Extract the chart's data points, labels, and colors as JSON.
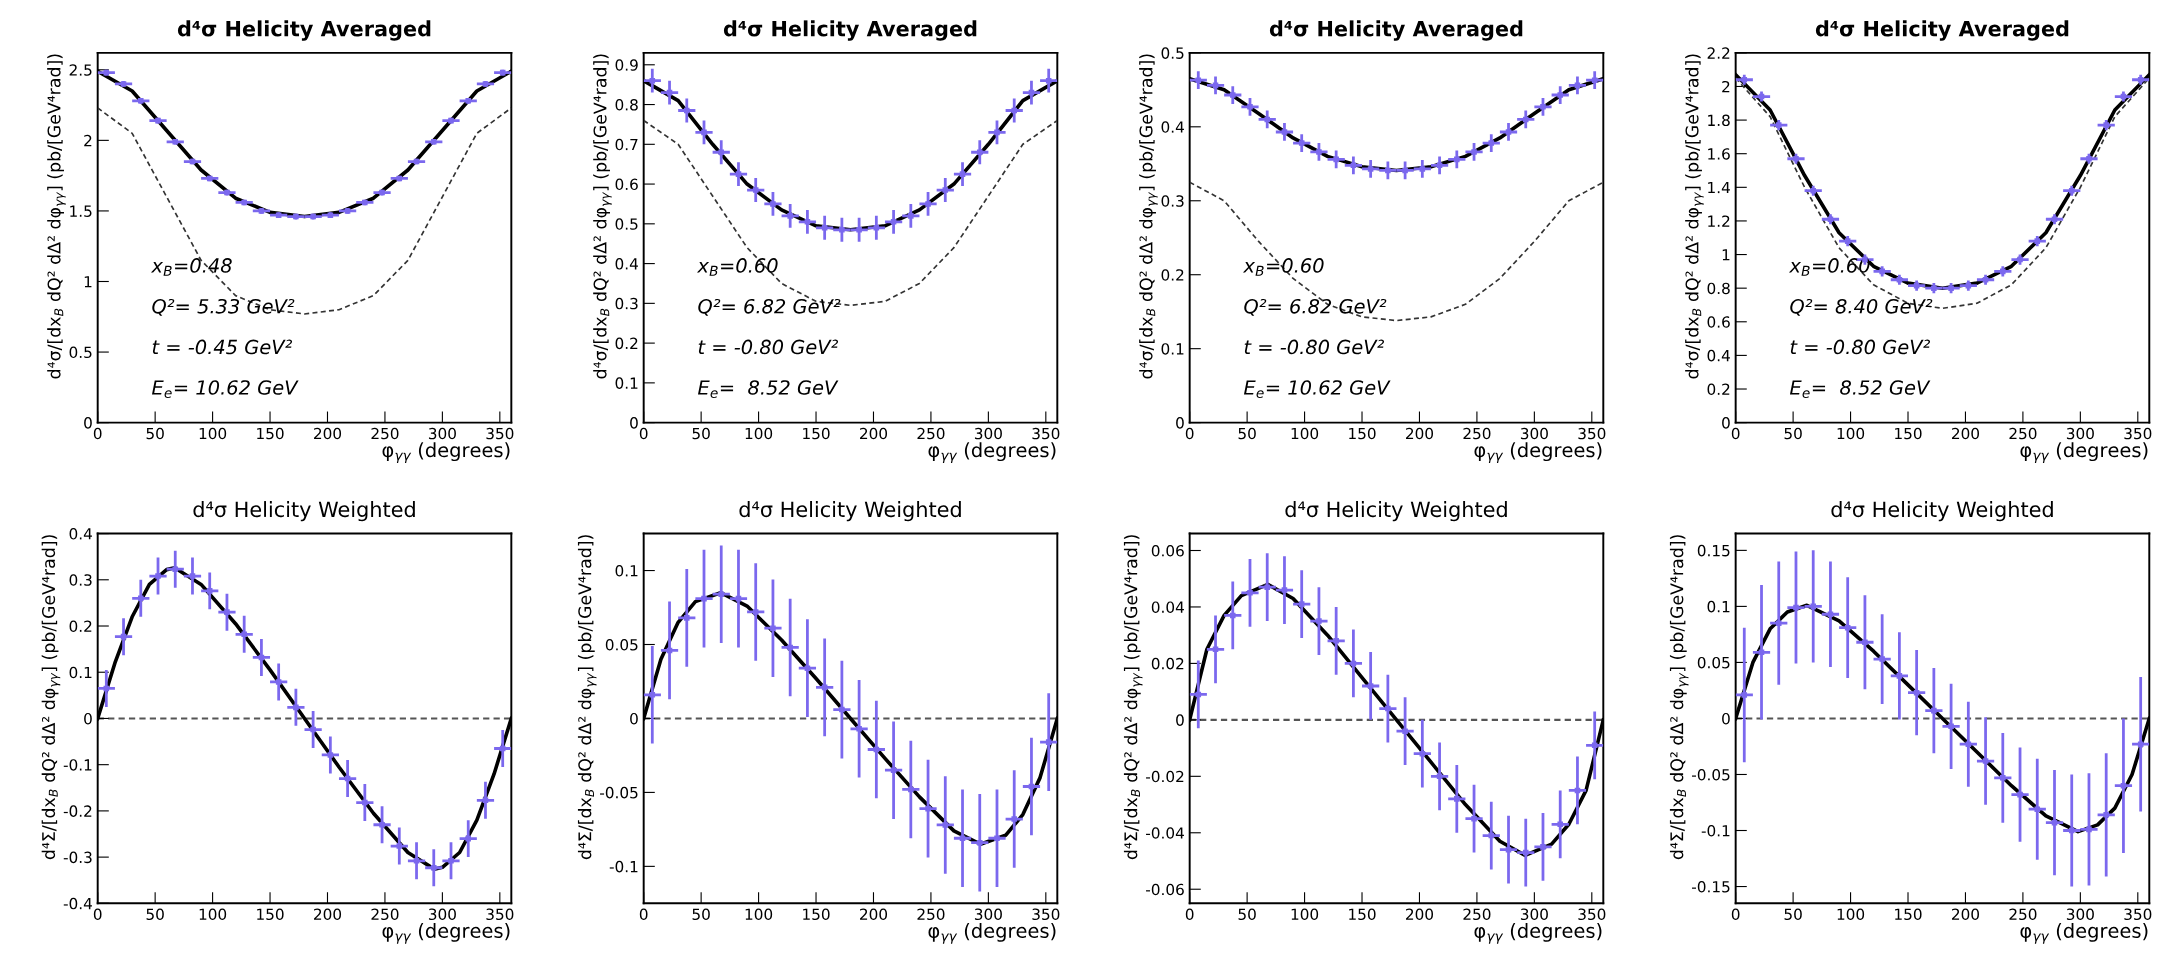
{
  "chart_data": [
    {
      "type": "scatter",
      "title": "d⁴σ Helicity Averaged",
      "xlabel": "φ$_{γγ}$ (degrees)",
      "ylabel": "d⁴σ/[dx$_{B}$ dQ² dΔ² dφ$_{γγ}$] (pb/[GeV⁴rad])",
      "xlim": [
        0,
        360
      ],
      "ylim": [
        0,
        2.62
      ],
      "xticks": [
        0,
        50,
        100,
        150,
        200,
        250,
        300,
        350
      ],
      "yticks": [
        0,
        0.5,
        1,
        1.5,
        2,
        2.5
      ],
      "grid": false,
      "legend": false,
      "marker": "none",
      "x": [
        7.5,
        22.5,
        37.5,
        52.5,
        67.5,
        82.5,
        97.5,
        112.5,
        127.5,
        142.5,
        157.5,
        172.5,
        187.5,
        202.5,
        217.5,
        232.5,
        247.5,
        262.5,
        277.5,
        292.5,
        307.5,
        322.5,
        337.5,
        352.5
      ],
      "annotations": [
        "x$_{B}$=0.48",
        "Q²= 5.33 GeV²",
        "t = -0.45 GeV²",
        "E$_{e}$= 10.62 GeV"
      ],
      "series": [
        {
          "type": "scatter",
          "marker": "square",
          "color": "#7b68ee",
          "values": [
            2.48,
            2.4,
            2.28,
            2.14,
            1.99,
            1.85,
            1.73,
            1.63,
            1.56,
            1.5,
            1.47,
            1.46,
            1.46,
            1.47,
            1.5,
            1.56,
            1.63,
            1.73,
            1.85,
            1.99,
            2.14,
            2.28,
            2.4,
            2.48
          ],
          "errors": [
            0.02,
            0.02,
            0.02,
            0.02,
            0.02,
            0.02,
            0.02,
            0.02,
            0.02,
            0.02,
            0.02,
            0.02,
            0.02,
            0.02,
            0.02,
            0.02,
            0.02,
            0.02,
            0.02,
            0.02,
            0.02,
            0.02,
            0.02,
            0.02
          ],
          "xerrors": [
            7.5,
            7.5,
            7.5,
            7.5,
            7.5,
            7.5,
            7.5,
            7.5,
            7.5,
            7.5,
            7.5,
            7.5,
            7.5,
            7.5,
            7.5,
            7.5,
            7.5,
            7.5,
            7.5,
            7.5,
            7.5,
            7.5,
            7.5,
            7.5
          ]
        },
        {
          "type": "line",
          "color": "#000000",
          "line_style": "solid",
          "x": [
            0,
            30,
            60,
            90,
            120,
            150,
            180,
            210,
            240,
            270,
            300,
            330,
            360
          ],
          "values": [
            2.49,
            2.35,
            2.07,
            1.79,
            1.59,
            1.49,
            1.46,
            1.49,
            1.59,
            1.79,
            2.07,
            2.35,
            2.49
          ]
        },
        {
          "type": "line",
          "color": "#333333",
          "line_style": "dashed",
          "x": [
            0,
            30,
            60,
            90,
            120,
            150,
            180,
            210,
            240,
            270,
            300,
            330,
            360
          ],
          "values": [
            2.23,
            2.05,
            1.6,
            1.15,
            0.9,
            0.8,
            0.77,
            0.8,
            0.9,
            1.15,
            1.6,
            2.05,
            2.23
          ]
        }
      ]
    },
    {
      "type": "scatter",
      "title": "d⁴σ Helicity Averaged",
      "xlabel": "φ$_{γγ}$ (degrees)",
      "ylabel": "d⁴σ/[dx$_{B}$ dQ² dΔ² dφ$_{γγ}$] (pb/[GeV⁴rad])",
      "xlim": [
        0,
        360
      ],
      "ylim": [
        0,
        0.93
      ],
      "xticks": [
        0,
        50,
        100,
        150,
        200,
        250,
        300,
        350
      ],
      "yticks": [
        0,
        0.1,
        0.2,
        0.3,
        0.4,
        0.5,
        0.6,
        0.7,
        0.8,
        0.9
      ],
      "grid": false,
      "legend": false,
      "marker": "none",
      "x": [
        7.5,
        22.5,
        37.5,
        52.5,
        67.5,
        82.5,
        97.5,
        112.5,
        127.5,
        142.5,
        157.5,
        172.5,
        187.5,
        202.5,
        217.5,
        232.5,
        247.5,
        262.5,
        277.5,
        292.5,
        307.5,
        322.5,
        337.5,
        352.5
      ],
      "annotations": [
        "x$_{B}$=0.60",
        "Q²= 6.82 GeV²",
        "t = -0.80 GeV²",
        "E$_{e}$=  8.52 GeV"
      ],
      "series": [
        {
          "type": "scatter",
          "marker": "square",
          "color": "#7b68ee",
          "values": [
            0.86,
            0.83,
            0.785,
            0.73,
            0.68,
            0.625,
            0.585,
            0.55,
            0.52,
            0.505,
            0.49,
            0.485,
            0.485,
            0.49,
            0.505,
            0.52,
            0.55,
            0.585,
            0.625,
            0.68,
            0.73,
            0.785,
            0.83,
            0.86
          ],
          "errors": [
            0.03,
            0.03,
            0.03,
            0.03,
            0.03,
            0.03,
            0.03,
            0.03,
            0.03,
            0.03,
            0.03,
            0.03,
            0.03,
            0.03,
            0.03,
            0.03,
            0.03,
            0.03,
            0.03,
            0.03,
            0.03,
            0.03,
            0.03,
            0.03
          ],
          "xerrors": [
            7.5,
            7.5,
            7.5,
            7.5,
            7.5,
            7.5,
            7.5,
            7.5,
            7.5,
            7.5,
            7.5,
            7.5,
            7.5,
            7.5,
            7.5,
            7.5,
            7.5,
            7.5,
            7.5,
            7.5,
            7.5,
            7.5,
            7.5,
            7.5
          ]
        },
        {
          "type": "line",
          "color": "#000000",
          "line_style": "solid",
          "x": [
            0,
            30,
            60,
            90,
            120,
            150,
            180,
            210,
            240,
            270,
            300,
            330,
            360
          ],
          "values": [
            0.86,
            0.81,
            0.7,
            0.6,
            0.535,
            0.495,
            0.485,
            0.495,
            0.535,
            0.6,
            0.7,
            0.81,
            0.86
          ]
        },
        {
          "type": "line",
          "color": "#333333",
          "line_style": "dashed",
          "x": [
            0,
            30,
            60,
            90,
            120,
            150,
            180,
            210,
            240,
            270,
            300,
            330,
            360
          ],
          "values": [
            0.76,
            0.7,
            0.57,
            0.44,
            0.35,
            0.305,
            0.295,
            0.305,
            0.35,
            0.44,
            0.57,
            0.7,
            0.76
          ]
        }
      ]
    },
    {
      "type": "scatter",
      "title": "d⁴σ Helicity Averaged",
      "xlabel": "φ$_{γγ}$ (degrees)",
      "ylabel": "d⁴σ/[dx$_{B}$ dQ² dΔ² dφ$_{γγ}$] (pb/[GeV⁴rad])",
      "xlim": [
        0,
        360
      ],
      "ylim": [
        0,
        0.5
      ],
      "xticks": [
        0,
        50,
        100,
        150,
        200,
        250,
        300,
        350
      ],
      "yticks": [
        0,
        0.1,
        0.2,
        0.3,
        0.4,
        0.5
      ],
      "grid": false,
      "legend": false,
      "marker": "none",
      "x": [
        7.5,
        22.5,
        37.5,
        52.5,
        67.5,
        82.5,
        97.5,
        112.5,
        127.5,
        142.5,
        157.5,
        172.5,
        187.5,
        202.5,
        217.5,
        232.5,
        247.5,
        262.5,
        277.5,
        292.5,
        307.5,
        322.5,
        337.5,
        352.5
      ],
      "annotations": [
        "x$_{B}$=0.60",
        "Q²= 6.82 GeV²",
        "t = -0.80 GeV²",
        "E$_{e}$= 10.62 GeV"
      ],
      "series": [
        {
          "type": "scatter",
          "marker": "square",
          "color": "#7b68ee",
          "values": [
            0.463,
            0.456,
            0.443,
            0.427,
            0.41,
            0.393,
            0.378,
            0.366,
            0.356,
            0.348,
            0.343,
            0.341,
            0.341,
            0.343,
            0.348,
            0.356,
            0.366,
            0.378,
            0.393,
            0.41,
            0.427,
            0.443,
            0.456,
            0.463
          ],
          "errors": [
            0.012,
            0.012,
            0.012,
            0.012,
            0.012,
            0.012,
            0.012,
            0.012,
            0.012,
            0.012,
            0.012,
            0.012,
            0.012,
            0.012,
            0.012,
            0.012,
            0.012,
            0.012,
            0.012,
            0.012,
            0.012,
            0.012,
            0.012,
            0.012
          ],
          "xerrors": [
            7.5,
            7.5,
            7.5,
            7.5,
            7.5,
            7.5,
            7.5,
            7.5,
            7.5,
            7.5,
            7.5,
            7.5,
            7.5,
            7.5,
            7.5,
            7.5,
            7.5,
            7.5,
            7.5,
            7.5,
            7.5,
            7.5,
            7.5,
            7.5
          ]
        },
        {
          "type": "line",
          "color": "#000000",
          "line_style": "solid",
          "x": [
            0,
            30,
            60,
            90,
            120,
            150,
            180,
            210,
            240,
            270,
            300,
            330,
            360
          ],
          "values": [
            0.465,
            0.45,
            0.418,
            0.385,
            0.36,
            0.346,
            0.341,
            0.346,
            0.36,
            0.385,
            0.418,
            0.45,
            0.465
          ]
        },
        {
          "type": "line",
          "color": "#333333",
          "line_style": "dashed",
          "x": [
            0,
            30,
            60,
            90,
            120,
            150,
            180,
            210,
            240,
            270,
            300,
            330,
            360
          ],
          "values": [
            0.325,
            0.3,
            0.245,
            0.195,
            0.16,
            0.143,
            0.138,
            0.143,
            0.16,
            0.195,
            0.245,
            0.3,
            0.325
          ]
        }
      ]
    },
    {
      "type": "scatter",
      "title": "d⁴σ Helicity Averaged",
      "xlabel": "φ$_{γγ}$ (degrees)",
      "ylabel": "d⁴σ/[dx$_{B}$ dQ² dΔ² dφ$_{γγ}$] (pb/[GeV⁴rad])",
      "xlim": [
        0,
        360
      ],
      "ylim": [
        0,
        2.2
      ],
      "xticks": [
        0,
        50,
        100,
        150,
        200,
        250,
        300,
        350
      ],
      "yticks": [
        0,
        0.2,
        0.4,
        0.6,
        0.8,
        1,
        1.2,
        1.4,
        1.6,
        1.8,
        2,
        2.2
      ],
      "grid": false,
      "legend": false,
      "marker": "none",
      "x": [
        7.5,
        22.5,
        37.5,
        52.5,
        67.5,
        82.5,
        97.5,
        112.5,
        127.5,
        142.5,
        157.5,
        172.5,
        187.5,
        202.5,
        217.5,
        232.5,
        247.5,
        262.5,
        277.5,
        292.5,
        307.5,
        322.5,
        337.5,
        352.5
      ],
      "annotations": [
        "x$_{B}$=0.60",
        "Q²= 8.40 GeV²",
        "t = -0.80 GeV²",
        "E$_{e}$=  8.52 GeV"
      ],
      "series": [
        {
          "type": "scatter",
          "marker": "square",
          "color": "#7b68ee",
          "values": [
            2.04,
            1.94,
            1.77,
            1.57,
            1.38,
            1.21,
            1.08,
            0.97,
            0.9,
            0.85,
            0.815,
            0.8,
            0.8,
            0.815,
            0.85,
            0.9,
            0.97,
            1.08,
            1.21,
            1.38,
            1.57,
            1.77,
            1.94,
            2.04
          ],
          "errors": [
            0.03,
            0.03,
            0.03,
            0.03,
            0.03,
            0.03,
            0.03,
            0.03,
            0.03,
            0.03,
            0.03,
            0.03,
            0.03,
            0.03,
            0.03,
            0.03,
            0.03,
            0.03,
            0.03,
            0.03,
            0.03,
            0.03,
            0.03,
            0.03
          ],
          "xerrors": [
            7.5,
            7.5,
            7.5,
            7.5,
            7.5,
            7.5,
            7.5,
            7.5,
            7.5,
            7.5,
            7.5,
            7.5,
            7.5,
            7.5,
            7.5,
            7.5,
            7.5,
            7.5,
            7.5,
            7.5,
            7.5,
            7.5,
            7.5,
            7.5
          ]
        },
        {
          "type": "line",
          "color": "#000000",
          "line_style": "solid",
          "x": [
            0,
            30,
            60,
            90,
            120,
            150,
            180,
            210,
            240,
            270,
            300,
            330,
            360
          ],
          "values": [
            2.07,
            1.86,
            1.47,
            1.13,
            0.93,
            0.83,
            0.8,
            0.83,
            0.93,
            1.13,
            1.47,
            1.86,
            2.07
          ]
        },
        {
          "type": "line",
          "color": "#333333",
          "line_style": "dashed",
          "x": [
            0,
            30,
            60,
            90,
            120,
            150,
            180,
            210,
            240,
            270,
            300,
            330,
            360
          ],
          "values": [
            2.05,
            1.82,
            1.4,
            1.04,
            0.82,
            0.71,
            0.68,
            0.71,
            0.82,
            1.04,
            1.4,
            1.82,
            2.05
          ]
        }
      ]
    },
    {
      "type": "scatter",
      "title": "d⁴σ Helicity Weighted",
      "xlabel": "φ$_{γγ}$ (degrees)",
      "ylabel": "d⁴Σ/[dx$_{B}$ dQ² dΔ² dφ$_{γγ}$] (pb/[GeV⁴rad])",
      "xlim": [
        0,
        360
      ],
      "ylim": [
        -0.4,
        0.4
      ],
      "xticks": [
        0,
        50,
        100,
        150,
        200,
        250,
        300,
        350
      ],
      "yticks": [
        -0.4,
        -0.3,
        -0.2,
        -0.1,
        0,
        0.1,
        0.2,
        0.3,
        0.4
      ],
      "grid": false,
      "legend": false,
      "marker": "none",
      "x": [
        7.5,
        22.5,
        37.5,
        52.5,
        67.5,
        82.5,
        97.5,
        112.5,
        127.5,
        142.5,
        157.5,
        172.5,
        187.5,
        202.5,
        217.5,
        232.5,
        247.5,
        262.5,
        277.5,
        292.5,
        307.5,
        322.5,
        337.5,
        352.5
      ],
      "ref_lines": [
        {
          "axis": "y",
          "value": 0,
          "color": "#555555",
          "line_style": "dashed"
        }
      ],
      "series": [
        {
          "type": "scatter",
          "marker": "square",
          "color": "#7b68ee",
          "values": [
            0.065,
            0.177,
            0.26,
            0.308,
            0.323,
            0.308,
            0.276,
            0.23,
            0.182,
            0.132,
            0.079,
            0.024,
            -0.024,
            -0.079,
            -0.13,
            -0.182,
            -0.23,
            -0.276,
            -0.308,
            -0.323,
            -0.308,
            -0.26,
            -0.177,
            -0.065
          ],
          "errors": [
            0.04,
            0.04,
            0.04,
            0.04,
            0.04,
            0.04,
            0.04,
            0.04,
            0.04,
            0.04,
            0.04,
            0.04,
            0.04,
            0.04,
            0.04,
            0.04,
            0.04,
            0.04,
            0.04,
            0.04,
            0.04,
            0.04,
            0.04,
            0.04
          ],
          "xerrors": [
            7.5,
            7.5,
            7.5,
            7.5,
            7.5,
            7.5,
            7.5,
            7.5,
            7.5,
            7.5,
            7.5,
            7.5,
            7.5,
            7.5,
            7.5,
            7.5,
            7.5,
            7.5,
            7.5,
            7.5,
            7.5,
            7.5,
            7.5,
            7.5
          ]
        },
        {
          "type": "line",
          "color": "#000000",
          "line_style": "solid",
          "x": [
            0,
            15,
            30,
            45,
            60,
            67,
            90,
            120,
            150,
            180,
            210,
            240,
            270,
            293,
            300,
            315,
            330,
            345,
            360
          ],
          "values": [
            0,
            0.12,
            0.22,
            0.29,
            0.322,
            0.326,
            0.29,
            0.205,
            0.105,
            0,
            -0.105,
            -0.205,
            -0.29,
            -0.326,
            -0.322,
            -0.29,
            -0.22,
            -0.12,
            0
          ]
        }
      ]
    },
    {
      "type": "scatter",
      "title": "d⁴σ Helicity Weighted",
      "xlabel": "φ$_{γγ}$ (degrees)",
      "ylabel": "d⁴Σ/[dx$_{B}$ dQ² dΔ² dφ$_{γγ}$] (pb/[GeV⁴rad])",
      "xlim": [
        0,
        360
      ],
      "ylim": [
        -0.125,
        0.125
      ],
      "xticks": [
        0,
        50,
        100,
        150,
        200,
        250,
        300,
        350
      ],
      "yticks": [
        -0.1,
        -0.05,
        0,
        0.05,
        0.1
      ],
      "grid": false,
      "legend": false,
      "marker": "none",
      "x": [
        7.5,
        22.5,
        37.5,
        52.5,
        67.5,
        82.5,
        97.5,
        112.5,
        127.5,
        142.5,
        157.5,
        172.5,
        187.5,
        202.5,
        217.5,
        232.5,
        247.5,
        262.5,
        277.5,
        292.5,
        307.5,
        322.5,
        337.5,
        352.5
      ],
      "ref_lines": [
        {
          "axis": "y",
          "value": 0,
          "color": "#555555",
          "line_style": "dashed"
        }
      ],
      "series": [
        {
          "type": "scatter",
          "marker": "square",
          "color": "#7b68ee",
          "values": [
            0.016,
            0.046,
            0.068,
            0.081,
            0.084,
            0.081,
            0.072,
            0.061,
            0.048,
            0.034,
            0.021,
            0.006,
            -0.007,
            -0.021,
            -0.035,
            -0.048,
            -0.061,
            -0.072,
            -0.081,
            -0.084,
            -0.081,
            -0.068,
            -0.046,
            -0.016
          ],
          "errors": [
            0.033,
            0.033,
            0.033,
            0.033,
            0.033,
            0.033,
            0.033,
            0.033,
            0.033,
            0.033,
            0.033,
            0.033,
            0.033,
            0.033,
            0.033,
            0.033,
            0.033,
            0.033,
            0.033,
            0.033,
            0.033,
            0.033,
            0.033,
            0.033
          ],
          "xerrors": [
            7.5,
            7.5,
            7.5,
            7.5,
            7.5,
            7.5,
            7.5,
            7.5,
            7.5,
            7.5,
            7.5,
            7.5,
            7.5,
            7.5,
            7.5,
            7.5,
            7.5,
            7.5,
            7.5,
            7.5,
            7.5,
            7.5,
            7.5,
            7.5
          ]
        },
        {
          "type": "line",
          "color": "#000000",
          "line_style": "solid",
          "x": [
            0,
            15,
            30,
            45,
            67,
            90,
            120,
            150,
            180,
            210,
            240,
            270,
            293,
            315,
            330,
            345,
            360
          ],
          "values": [
            0,
            0.04,
            0.065,
            0.079,
            0.085,
            0.076,
            0.053,
            0.027,
            0,
            -0.027,
            -0.053,
            -0.076,
            -0.085,
            -0.079,
            -0.065,
            -0.04,
            0
          ]
        }
      ]
    },
    {
      "type": "scatter",
      "title": "d⁴σ Helicity Weighted",
      "xlabel": "φ$_{γγ}$ (degrees)",
      "ylabel": "d⁴Σ/[dx$_{B}$ dQ² dΔ² dφ$_{γγ}$] (pb/[GeV⁴rad])",
      "xlim": [
        0,
        360
      ],
      "ylim": [
        -0.065,
        0.066
      ],
      "xticks": [
        0,
        50,
        100,
        150,
        200,
        250,
        300,
        350
      ],
      "yticks": [
        -0.06,
        -0.04,
        -0.02,
        0,
        0.02,
        0.04,
        0.06
      ],
      "grid": false,
      "legend": false,
      "marker": "none",
      "x": [
        7.5,
        22.5,
        37.5,
        52.5,
        67.5,
        82.5,
        97.5,
        112.5,
        127.5,
        142.5,
        157.5,
        172.5,
        187.5,
        202.5,
        217.5,
        232.5,
        247.5,
        262.5,
        277.5,
        292.5,
        307.5,
        322.5,
        337.5,
        352.5
      ],
      "ref_lines": [
        {
          "axis": "y",
          "value": 0,
          "color": "#555555",
          "line_style": "dashed"
        }
      ],
      "series": [
        {
          "type": "scatter",
          "marker": "square",
          "color": "#7b68ee",
          "values": [
            0.009,
            0.025,
            0.037,
            0.045,
            0.047,
            0.046,
            0.041,
            0.035,
            0.028,
            0.02,
            0.012,
            0.004,
            -0.004,
            -0.012,
            -0.02,
            -0.028,
            -0.035,
            -0.041,
            -0.046,
            -0.047,
            -0.045,
            -0.037,
            -0.025,
            -0.009
          ],
          "errors": [
            0.012,
            0.012,
            0.012,
            0.012,
            0.012,
            0.012,
            0.012,
            0.012,
            0.012,
            0.012,
            0.012,
            0.012,
            0.012,
            0.012,
            0.012,
            0.012,
            0.012,
            0.012,
            0.012,
            0.012,
            0.012,
            0.012,
            0.012,
            0.012
          ],
          "xerrors": [
            7.5,
            7.5,
            7.5,
            7.5,
            7.5,
            7.5,
            7.5,
            7.5,
            7.5,
            7.5,
            7.5,
            7.5,
            7.5,
            7.5,
            7.5,
            7.5,
            7.5,
            7.5,
            7.5,
            7.5,
            7.5,
            7.5,
            7.5,
            7.5
          ]
        },
        {
          "type": "line",
          "color": "#000000",
          "line_style": "solid",
          "x": [
            0,
            15,
            30,
            45,
            68,
            90,
            120,
            150,
            180,
            210,
            240,
            270,
            292,
            315,
            330,
            345,
            360
          ],
          "values": [
            0,
            0.025,
            0.037,
            0.044,
            0.048,
            0.043,
            0.03,
            0.015,
            0,
            -0.015,
            -0.03,
            -0.043,
            -0.048,
            -0.044,
            -0.037,
            -0.025,
            0
          ]
        }
      ]
    },
    {
      "type": "scatter",
      "title": "d⁴σ Helicity Weighted",
      "xlabel": "φ$_{γγ}$ (degrees)",
      "ylabel": "d⁴Σ/[dx$_{B}$ dQ² dΔ² dφ$_{γγ}$] (pb/[GeV⁴rad])",
      "xlim": [
        0,
        360
      ],
      "ylim": [
        -0.165,
        0.165
      ],
      "xticks": [
        0,
        50,
        100,
        150,
        200,
        250,
        300,
        350
      ],
      "yticks": [
        -0.15,
        -0.1,
        -0.05,
        0,
        0.05,
        0.1,
        0.15
      ],
      "grid": false,
      "legend": false,
      "marker": "none",
      "x": [
        7.5,
        22.5,
        37.5,
        52.5,
        67.5,
        82.5,
        97.5,
        112.5,
        127.5,
        142.5,
        157.5,
        172.5,
        187.5,
        202.5,
        217.5,
        232.5,
        247.5,
        262.5,
        277.5,
        292.5,
        307.5,
        322.5,
        337.5,
        352.5
      ],
      "ref_lines": [
        {
          "axis": "y",
          "value": 0,
          "color": "#555555",
          "line_style": "dashed"
        }
      ],
      "series": [
        {
          "type": "scatter",
          "marker": "square",
          "color": "#7b68ee",
          "values": [
            0.021,
            0.059,
            0.085,
            0.099,
            0.1,
            0.093,
            0.081,
            0.068,
            0.053,
            0.038,
            0.023,
            0.007,
            -0.007,
            -0.023,
            -0.038,
            -0.053,
            -0.068,
            -0.081,
            -0.093,
            -0.1,
            -0.099,
            -0.086,
            -0.06,
            -0.023
          ],
          "errors": [
            0.06,
            0.06,
            0.055,
            0.05,
            0.05,
            0.047,
            0.045,
            0.042,
            0.04,
            0.039,
            0.038,
            0.038,
            0.038,
            0.038,
            0.039,
            0.04,
            0.042,
            0.045,
            0.047,
            0.05,
            0.05,
            0.055,
            0.06,
            0.06
          ],
          "xerrors": [
            7.5,
            7.5,
            7.5,
            7.5,
            7.5,
            7.5,
            7.5,
            7.5,
            7.5,
            7.5,
            7.5,
            7.5,
            7.5,
            7.5,
            7.5,
            7.5,
            7.5,
            7.5,
            7.5,
            7.5,
            7.5,
            7.5,
            7.5,
            7.5
          ]
        },
        {
          "type": "line",
          "color": "#000000",
          "line_style": "solid",
          "x": [
            0,
            15,
            30,
            45,
            62,
            90,
            120,
            150,
            180,
            210,
            240,
            270,
            298,
            315,
            330,
            345,
            360
          ],
          "values": [
            0,
            0.05,
            0.08,
            0.095,
            0.101,
            0.087,
            0.06,
            0.03,
            0,
            -0.03,
            -0.06,
            -0.087,
            -0.101,
            -0.095,
            -0.08,
            -0.05,
            0
          ]
        }
      ]
    }
  ]
}
